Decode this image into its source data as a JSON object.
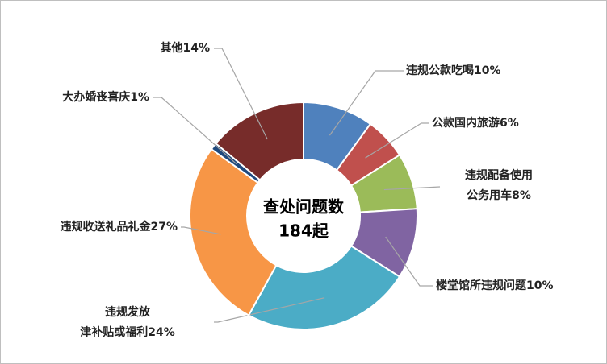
{
  "chart_data": {
    "type": "pie",
    "donut": true,
    "center_text": [
      "查处问题数",
      "184起"
    ],
    "categories": [
      "违规公款吃喝",
      "公款国内旅游",
      "违规配备使用公务用车",
      "楼堂馆所违规问题",
      "违规发放津补贴或福利",
      "违规收送礼品礼金",
      "大办婚丧喜庆",
      "其他"
    ],
    "values": [
      10,
      6,
      8,
      10,
      24,
      27,
      1,
      14
    ],
    "value_labels": [
      "10%",
      "6%",
      "8%",
      "10%",
      "24%",
      "27%",
      "1%",
      "14%"
    ],
    "colors": [
      "#4f81bd",
      "#c0504d",
      "#9bbb59",
      "#8064a2",
      "#4bacc6",
      "#f79646",
      "#1f497d",
      "#772c2a"
    ]
  }
}
